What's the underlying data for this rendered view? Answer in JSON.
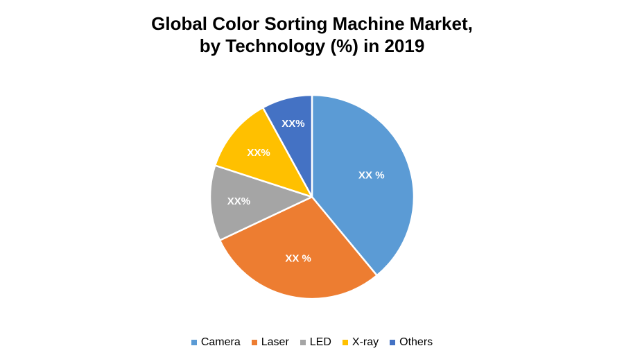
{
  "chart_data": {
    "type": "pie",
    "title": [
      "Global Color Sorting Machine Market,",
      "by Technology (%) in 2019"
    ],
    "categories": [
      "Camera",
      "Laser",
      "LED",
      "X-ray",
      "Others"
    ],
    "values": [
      39,
      29,
      12,
      12,
      8
    ],
    "labels": [
      "XX %",
      "XX %",
      "XX%",
      "XX%",
      "XX%"
    ],
    "colors": [
      "#5B9BD5",
      "#ED7D31",
      "#A5A5A5",
      "#FFC000",
      "#4472C4"
    ],
    "legend_position": "bottom",
    "start_angle_deg": 0,
    "direction": "clockwise"
  }
}
